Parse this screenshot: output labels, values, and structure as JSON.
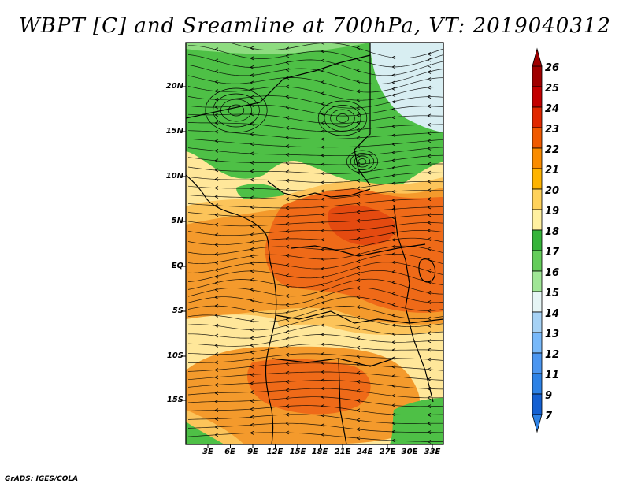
{
  "title": "WBPT [C] and Sreamline at 700hPa, VT: 2019040312",
  "credit": "GrADS: IGES/COLA",
  "map": {
    "lat_labels": [
      "20N",
      "15N",
      "10N",
      "5N",
      "EQ",
      "5S",
      "10S",
      "15S"
    ],
    "lon_labels": [
      "3E",
      "6E",
      "9E",
      "12E",
      "15E",
      "18E",
      "21E",
      "24E",
      "27E",
      "30E",
      "33E"
    ]
  },
  "colorbar": {
    "labels": [
      "26",
      "25",
      "24",
      "23",
      "22",
      "21",
      "20",
      "19",
      "18",
      "17",
      "16",
      "15",
      "14",
      "13",
      "12",
      "11",
      "9",
      "7"
    ],
    "colors": [
      "#a00000",
      "#c30000",
      "#e12800",
      "#f05a00",
      "#fa8c00",
      "#ffb400",
      "#ffd25a",
      "#fff0a0",
      "#36b43a",
      "#64cd5a",
      "#a0e696",
      "#e6f5f5",
      "#a6d2f5",
      "#78b9fa",
      "#4b96f0",
      "#2d82e6",
      "#1460d2"
    ]
  },
  "field_colors": {
    "green": "#4ec046",
    "lightgreen": "#8edc80",
    "paleblue": "#d8eef2",
    "yellow": "#ffe79a",
    "lightorange": "#fcc45a",
    "orange": "#f49a2c",
    "deeporange": "#ef6a18",
    "red": "#e44a10"
  }
}
